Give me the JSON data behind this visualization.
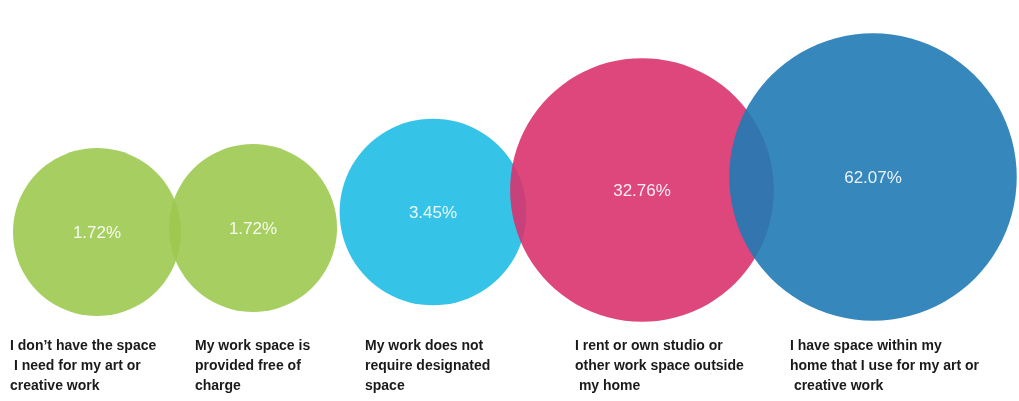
{
  "chart_data": {
    "type": "other",
    "categories": [
      "I don’t have the space I need for my art or creative work",
      "My work space is provided free of charge",
      "My work does not require designated space",
      "I rent or own studio or other work space outside my home",
      "I have space within my home that I use for my art or creative work"
    ],
    "values": [
      1.72,
      1.72,
      3.45,
      32.76,
      62.07
    ],
    "value_labels": [
      "1.72%",
      "1.72%",
      "3.45%",
      "32.76%",
      "62.07%"
    ],
    "colors": [
      "#9dc94f",
      "#9dc94f",
      "#1fbde6",
      "#d9336e",
      "#1f7ab5"
    ]
  }
}
